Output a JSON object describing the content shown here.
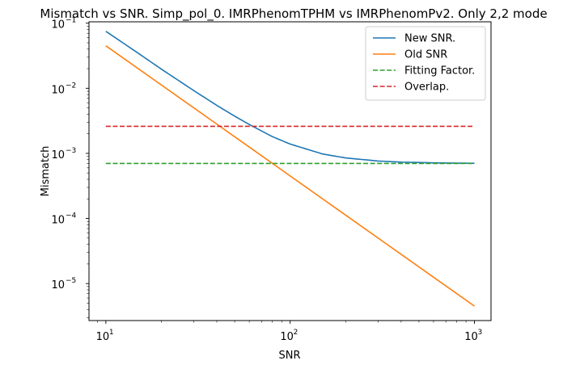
{
  "chart_data": {
    "type": "line",
    "title": "Mismatch vs SNR. Simp_pol_0. IMRPhenomTPHM vs IMRPhenomPv2. Only 2,2 mode",
    "xlabel": "SNR",
    "ylabel": "Mismatch",
    "x_scale": "log",
    "y_scale": "log",
    "xlim": [
      8.1,
      1230
    ],
    "ylim": [
      2.7e-06,
      0.105
    ],
    "grid": false,
    "legend_position": "top-right",
    "x_ticks": [
      {
        "value": 10,
        "base": "10",
        "exp": "1"
      },
      {
        "value": 100,
        "base": "10",
        "exp": "2"
      },
      {
        "value": 1000,
        "base": "10",
        "exp": "3"
      }
    ],
    "y_ticks": [
      {
        "value": 1e-05,
        "base": "10",
        "exp": "−5"
      },
      {
        "value": 0.0001,
        "base": "10",
        "exp": "−4"
      },
      {
        "value": 0.001,
        "base": "10",
        "exp": "−3"
      },
      {
        "value": 0.01,
        "base": "10",
        "exp": "−2"
      },
      {
        "value": 0.1,
        "base": "10",
        "exp": "−1"
      }
    ],
    "series": [
      {
        "name": "New SNR.",
        "color": "#1f77b4",
        "dash": "solid",
        "x": [
          10,
          15,
          20,
          30,
          40,
          50,
          60,
          80,
          100,
          150,
          200,
          300,
          400,
          600,
          800,
          1000
        ],
        "y": [
          0.075,
          0.0345,
          0.0197,
          0.00921,
          0.00546,
          0.00373,
          0.00278,
          0.00181,
          0.00139,
          0.000978,
          0.000851,
          0.000763,
          0.000734,
          0.000715,
          0.000708,
          0.000705
        ]
      },
      {
        "name": "Old SNR",
        "color": "#ff7f0e",
        "dash": "solid",
        "x": [
          10,
          1000
        ],
        "y": [
          0.045,
          4.5e-06
        ]
      },
      {
        "name": "Fitting Factor.",
        "color": "#2ca02c",
        "dash": "dashed",
        "x": [
          10,
          1000
        ],
        "y": [
          0.0007,
          0.0007
        ]
      },
      {
        "name": "Overlap.",
        "color": "#d62728",
        "dash": "dashed",
        "x": [
          10,
          1000
        ],
        "y": [
          0.0026,
          0.0026
        ]
      }
    ]
  }
}
